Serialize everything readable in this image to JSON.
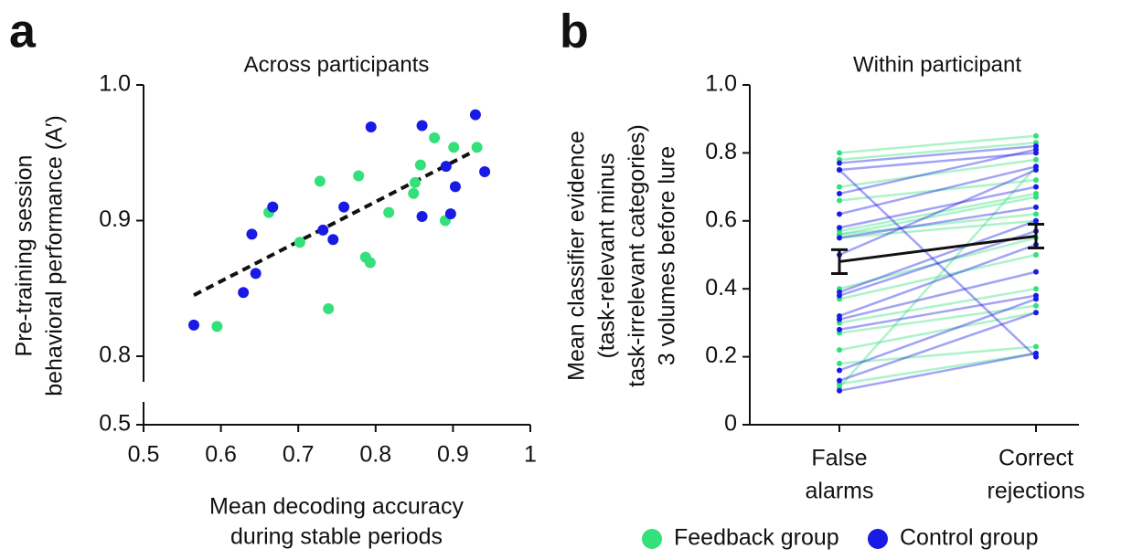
{
  "chart_data": [
    {
      "type": "scatter",
      "panel_label": "a",
      "title": "Across participants",
      "x_label": [
        "Mean decoding accuracy",
        "during stable periods"
      ],
      "y_label": [
        "Pre-training session",
        "behavioral performance (A′)"
      ],
      "xlim": [
        0.5,
        1.0
      ],
      "xticks": [
        0.5,
        0.6,
        0.7,
        0.8,
        0.9,
        1.0
      ],
      "ylim": [
        0.5,
        1.0
      ],
      "ybreak": [
        0.5,
        0.8
      ],
      "yticks": [
        0.5,
        0.8,
        0.9,
        {
          "value": 1.0,
          "label": "1.0"
        }
      ],
      "xtick_labels_fixed": true,
      "series": [
        {
          "color": "#33e07a",
          "x": [
            0.595,
            0.662,
            0.702,
            0.728,
            0.739,
            0.778,
            0.787,
            0.793,
            0.817,
            0.849,
            0.851,
            0.858,
            0.876,
            0.89,
            0.901,
            0.931
          ],
          "values": [
            0.822,
            0.906,
            0.884,
            0.929,
            0.835,
            0.933,
            0.873,
            0.869,
            0.906,
            0.92,
            0.928,
            0.941,
            0.961,
            0.9,
            0.954,
            0.954
          ]
        },
        {
          "color": "#1a1ae6",
          "x": [
            0.565,
            0.64,
            0.645,
            0.629,
            0.667,
            0.732,
            0.745,
            0.759,
            0.794,
            0.86,
            0.86,
            0.891,
            0.897,
            0.903,
            0.929,
            0.941
          ],
          "values": [
            0.823,
            0.89,
            0.861,
            0.847,
            0.91,
            0.893,
            0.886,
            0.91,
            0.969,
            0.97,
            0.903,
            0.94,
            0.905,
            0.925,
            0.978,
            0.936
          ]
        }
      ],
      "fit_line": {
        "x": [
          0.565,
          0.93
        ],
        "values": [
          0.845,
          0.952
        ],
        "color": "#111111"
      }
    },
    {
      "type": "paired-line",
      "panel_label": "b",
      "title": "Within participant",
      "y_label": [
        "Mean classifier evidence",
        "(task-relevant minus",
        "task-irrelevant categories)",
        "3 volumes before lure"
      ],
      "categories": [
        [
          "False",
          "alarms"
        ],
        [
          "Correct",
          "rejections"
        ]
      ],
      "ylim": [
        0,
        1.0
      ],
      "yticks": [
        0,
        0.2,
        0.4,
        0.6,
        0.8,
        {
          "value": 1.0,
          "label": "1.0"
        }
      ],
      "series": [
        {
          "name": "Feedback group",
          "color": "#33e07a",
          "participants": [
            [
              0.8,
              0.85
            ],
            [
              0.78,
              0.83
            ],
            [
              0.7,
              0.78
            ],
            [
              0.66,
              0.72
            ],
            [
              0.57,
              0.68
            ],
            [
              0.56,
              0.67
            ],
            [
              0.55,
              0.6
            ],
            [
              0.4,
              0.55
            ],
            [
              0.37,
              0.5
            ],
            [
              0.3,
              0.4
            ],
            [
              0.27,
              0.35
            ],
            [
              0.22,
              0.33
            ],
            [
              0.18,
              0.23
            ],
            [
              0.12,
              0.21
            ],
            [
              0.11,
              0.76
            ],
            [
              0.56,
              0.62
            ]
          ]
        },
        {
          "name": "Control group",
          "color": "#1a1ae6",
          "participants": [
            [
              0.77,
              0.82
            ],
            [
              0.75,
              0.8
            ],
            [
              0.68,
              0.81
            ],
            [
              0.62,
              0.76
            ],
            [
              0.58,
              0.7
            ],
            [
              0.55,
              0.64
            ],
            [
              0.39,
              0.6
            ],
            [
              0.38,
              0.57
            ],
            [
              0.32,
              0.53
            ],
            [
              0.31,
              0.45
            ],
            [
              0.28,
              0.38
            ],
            [
              0.16,
              0.37
            ],
            [
              0.13,
              0.33
            ],
            [
              0.1,
              0.21
            ],
            [
              0.75,
              0.2
            ],
            [
              0.5,
              0.75
            ]
          ]
        }
      ],
      "mean": {
        "values": [
          0.48,
          0.555
        ],
        "errors": [
          0.035,
          0.035
        ],
        "color": "#111111"
      }
    }
  ]
}
